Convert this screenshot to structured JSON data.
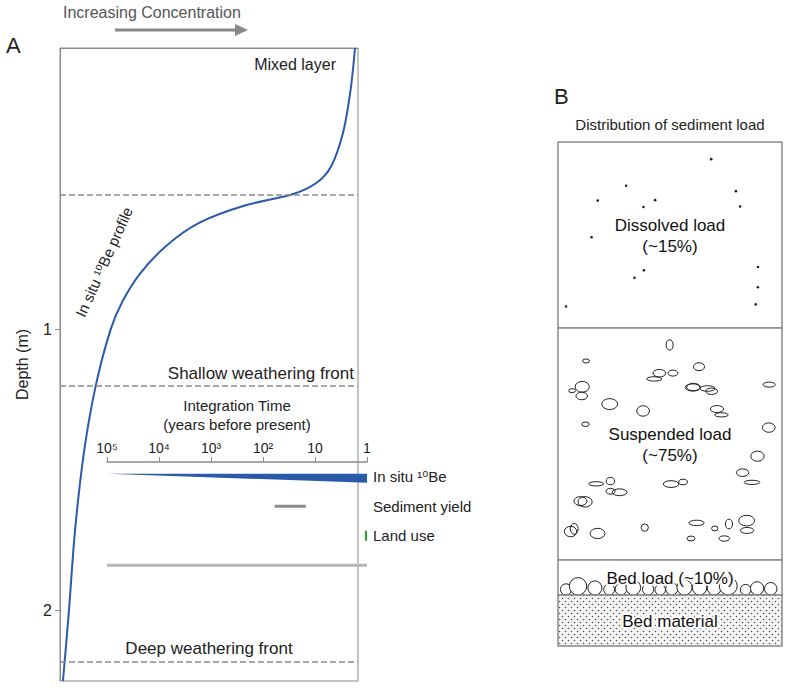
{
  "chart_data": [
    {
      "type": "line",
      "panel_label": "A",
      "title": "Increasing Concentration",
      "ylabel": "Depth (m)",
      "xlim": [
        0,
        1
      ],
      "ylim": [
        0,
        2.25
      ],
      "yticks": [
        1,
        2
      ],
      "tick_labels": "y",
      "grid": false,
      "series": [
        {
          "name": "In situ ¹⁰Be profile",
          "color": "#2b5aa8",
          "concentration": [
            0.99,
            0.975,
            0.95,
            0.91,
            0.86,
            0.78,
            0.62,
            0.47,
            0.36,
            0.27,
            0.21,
            0.17,
            0.12,
            0.08,
            0.05,
            0.03,
            0.01
          ],
          "depth": [
            0,
            0.15,
            0.3,
            0.42,
            0.48,
            0.52,
            0.56,
            0.62,
            0.7,
            0.8,
            0.9,
            1.0,
            1.2,
            1.44,
            1.72,
            2.0,
            2.25
          ]
        }
      ],
      "boundaries": [
        {
          "value": 0.52
        },
        {
          "value": 1.2,
          "label": "Shallow weathering front"
        },
        {
          "value": 2.18,
          "label": "Deep weathering front"
        }
      ],
      "annotations": [
        "Mixed layer"
      ]
    },
    {
      "type": "range",
      "title": "Integration Time",
      "subtitle": "(years before present)",
      "log": "x",
      "grid": false,
      "xlim": [
        100000,
        1
      ],
      "xticks": [
        {
          "value": 100000,
          "label": "10⁵"
        },
        {
          "value": 10000,
          "label": "10⁴"
        },
        {
          "value": 1000,
          "label": "10³"
        },
        {
          "value": 100,
          "label": "10²"
        },
        10,
        1
      ],
      "categories": [
        "In situ ¹⁰Be",
        "Sediment yield",
        "Land use",
        null
      ],
      "ranges": [
        {
          "from": 100000,
          "to": 1,
          "type": "wedge",
          "color": "#2b5aa8"
        },
        {
          "from": 60,
          "to": 15,
          "type": "bar",
          "color": "#8c8c8c"
        },
        {
          "from": 1.1,
          "to": 1,
          "type": "tick",
          "color": "#3a9a3a"
        },
        {
          "from": 100000,
          "to": 1,
          "type": "bar",
          "color": "#b4b4b4"
        }
      ]
    }
  ],
  "diagram": {
    "panel_label": "B",
    "title": "Distribution of sediment load",
    "layers": [
      {
        "name": "Dissolved load",
        "share": {
          "value": 15,
          "label": "(~15%)"
        }
      },
      {
        "name": "Suspended load",
        "share": {
          "value": 75,
          "label": "(~75%)"
        }
      },
      {
        "name": "Bed load",
        "share": {
          "value": 10,
          "label": "(~10%)"
        }
      },
      {
        "name": "Bed material"
      }
    ]
  }
}
